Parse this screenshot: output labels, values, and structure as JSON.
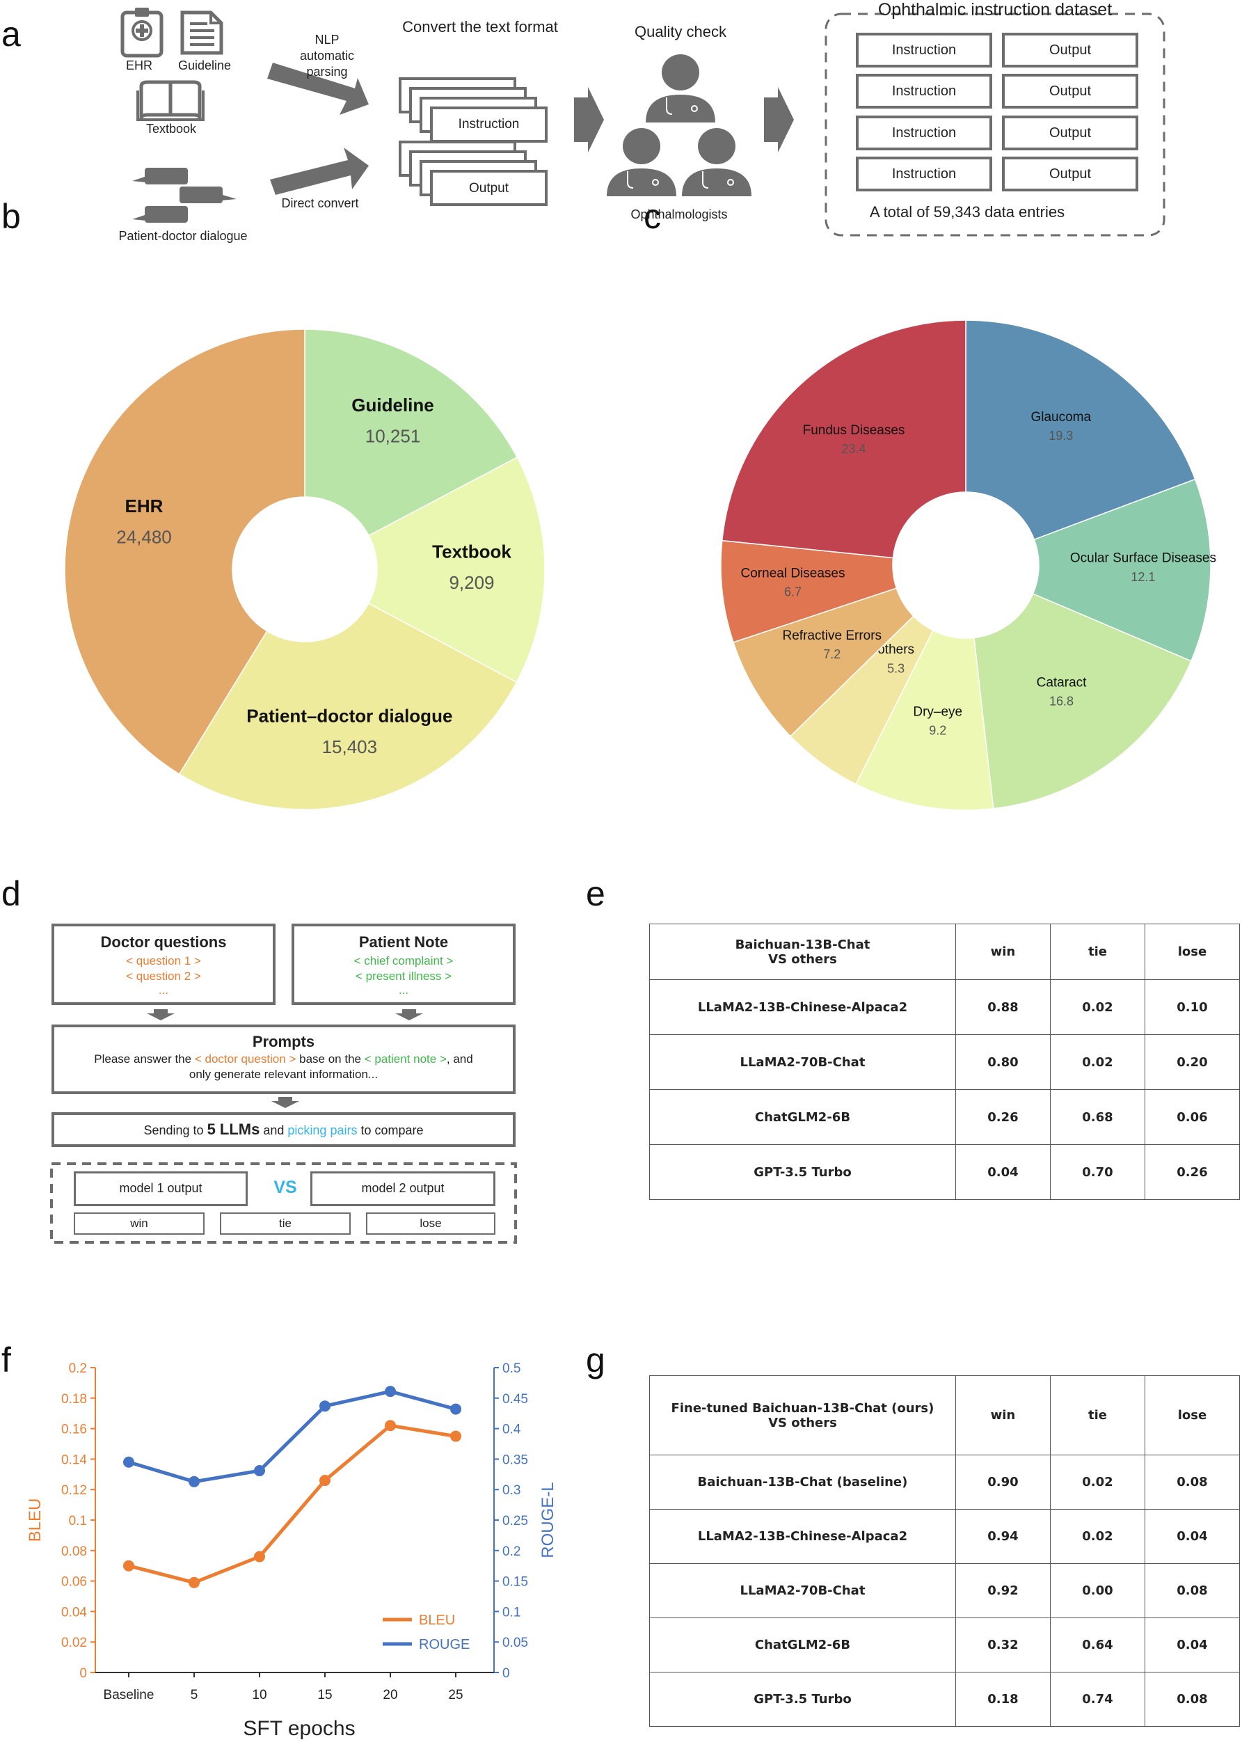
{
  "panels": {
    "a": "a",
    "b": "b",
    "c": "c",
    "d": "d",
    "e": "e",
    "f": "f",
    "g": "g"
  },
  "panel_a": {
    "sources": {
      "ehr": "EHR",
      "guideline": "Guideline",
      "textbook": "Textbook",
      "dialogue": "Patient-doctor dialogue"
    },
    "arrow_top_label": [
      "NLP",
      "automatic",
      "parsing"
    ],
    "arrow_bottom_label": "Direct convert",
    "convert_title": "Convert the text format",
    "instruction": "Instruction",
    "output": "Output",
    "quality_title": "Quality check",
    "ophthalmologists": "Ophthalmologists",
    "dataset_title": "Ophthalmic instruction dataset",
    "dataset_total": "A  total of 59,343 data entries",
    "colors": {
      "gray": "#6d6d6d"
    }
  },
  "chart_data": [
    {
      "type": "pie",
      "variant": "donut",
      "title": "",
      "labels": [
        "Guideline",
        "Textbook",
        "Patient-doctor dialogue",
        "EHR"
      ],
      "values": [
        10251,
        9209,
        15403,
        24480
      ],
      "display_values": [
        "10,251",
        "9,209",
        "15,403",
        "24,480"
      ],
      "display_labels": [
        "Guideline",
        "Textbook",
        "Patient–doctor dialogue",
        "EHR"
      ],
      "colors": [
        "#b8e4a8",
        "#e9f7b0",
        "#eeeb9c",
        "#e3a96b"
      ]
    },
    {
      "type": "pie",
      "variant": "donut",
      "title": "",
      "labels": [
        "Glaucoma",
        "Ocular Surface Diseases",
        "Cataract",
        "Dry-eye",
        "others",
        "Refractive Errors",
        "Corneal Diseases",
        "Fundus Diseases"
      ],
      "display_labels": [
        "Glaucoma",
        "Ocular Surface Diseases",
        "Cataract",
        "Dry–eye",
        "others",
        "Refractive Errors",
        "Corneal Diseases",
        "Fundus Diseases"
      ],
      "values": [
        19.3,
        12.1,
        16.8,
        9.2,
        5.3,
        7.2,
        6.7,
        23.4
      ],
      "display_values": [
        "19.3",
        "12.1",
        "16.8",
        "9.2",
        "5.3",
        "7.2",
        "6.7",
        "23.4"
      ],
      "colors": [
        "#5c8fb2",
        "#8ccbab",
        "#c6e8a3",
        "#eef8b5",
        "#f1e7a2",
        "#e6b573",
        "#df7551",
        "#c24350"
      ]
    },
    {
      "type": "line",
      "title": "",
      "xlabel": "SFT epochs",
      "ylabel_left": "BLEU",
      "ylabel_right": "ROUGE-L",
      "categories": [
        "Baseline",
        "5",
        "10",
        "15",
        "20",
        "25"
      ],
      "series": [
        {
          "name": "BLEU",
          "axis": "left",
          "color": "#ed7d31",
          "values": [
            0.07,
            0.059,
            0.076,
            0.126,
            0.162,
            0.155
          ]
        },
        {
          "name": "ROUGE",
          "axis": "right",
          "color": "#4472c4",
          "values": [
            0.345,
            0.313,
            0.331,
            0.437,
            0.461,
            0.432
          ]
        }
      ],
      "ylim_left": [
        0,
        0.2
      ],
      "yticks_left": [
        "0",
        "0.02",
        "0.04",
        "0.06",
        "0.08",
        "0.1",
        "0.12",
        "0.14",
        "0.16",
        "0.18",
        "0.2"
      ],
      "ylim_right": [
        0,
        0.5
      ],
      "yticks_right": [
        "0",
        "0.05",
        "0.1",
        "0.15",
        "0.2",
        "0.25",
        "0.3",
        "0.35",
        "0.4",
        "0.45",
        "0.5"
      ],
      "legend": "bottom-right",
      "grid": false
    }
  ],
  "panel_d": {
    "doctor_title": "Doctor questions",
    "doctor_items": [
      "< question 1 >",
      "< question 2 >",
      "..."
    ],
    "patient_title": "Patient Note",
    "patient_items": [
      "< chief complaint >",
      "< present illness >",
      "..."
    ],
    "prompts_title": "Prompts",
    "prompt_p1": "Please answer the ",
    "prompt_q": "< doctor question >",
    "prompt_p2": " base on the ",
    "prompt_n": "< patient note >",
    "prompt_p3": ", and",
    "prompt_line2": "only generate relevant information...",
    "send_p1": "Sending to ",
    "send_bold": "5 LLMs",
    "send_p2": " and ",
    "send_blue": "picking pairs",
    "send_p3": " to compare",
    "model1": "model 1 output",
    "vs": "VS",
    "model2": "model 2 output",
    "win": "win",
    "tie": "tie",
    "lose": "lose"
  },
  "table_e": {
    "header": [
      "Baichuan-13B-Chat\nVS others",
      "win",
      "tie",
      "lose"
    ],
    "header_l1": "Baichuan-13B-Chat",
    "header_l2": "VS others",
    "rows": [
      {
        "model": "LLaMA2-13B-Chinese-Alpaca2",
        "win": "0.88",
        "tie": "0.02",
        "lose": "0.10"
      },
      {
        "model": "LLaMA2-70B-Chat",
        "win": "0.80",
        "tie": "0.02",
        "lose": "0.20"
      },
      {
        "model": "ChatGLM2-6B",
        "win": "0.26",
        "tie": "0.68",
        "lose": "0.06"
      },
      {
        "model": "GPT-3.5 Turbo",
        "win": "0.04",
        "tie": "0.70",
        "lose": "0.26"
      }
    ]
  },
  "table_g": {
    "header_l1": "Fine-tuned Baichuan-13B-Chat (ours)",
    "header_l2": "VS others",
    "win": "win",
    "tie": "tie",
    "lose": "lose",
    "rows": [
      {
        "model": "Baichuan-13B-Chat (baseline)",
        "win": "0.90",
        "tie": "0.02",
        "lose": "0.08"
      },
      {
        "model": "LLaMA2-13B-Chinese-Alpaca2",
        "win": "0.94",
        "tie": "0.02",
        "lose": "0.04"
      },
      {
        "model": "LLaMA2-70B-Chat",
        "win": "0.92",
        "tie": "0.00",
        "lose": "0.08"
      },
      {
        "model": "ChatGLM2-6B",
        "win": "0.32",
        "tie": "0.64",
        "lose": "0.04"
      },
      {
        "model": "GPT-3.5 Turbo",
        "win": "0.18",
        "tie": "0.74",
        "lose": "0.08"
      }
    ]
  }
}
